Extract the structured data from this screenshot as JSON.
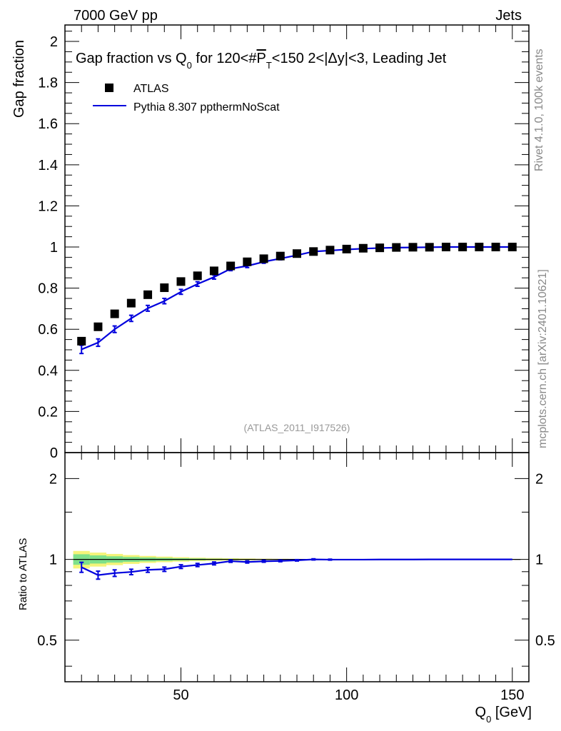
{
  "header": {
    "left": "7000 GeV pp",
    "right": "Jets"
  },
  "side_labels": {
    "rivet": "Rivet 4.1.0,  100k events",
    "mcplots": "mcplots.cern.ch [arXiv:2401.10621]"
  },
  "reference": "(ATLAS_2011_I917526)",
  "colors": {
    "data": "#000000",
    "mc": "#0000dd",
    "band_inner": "#7ee08a",
    "band_outer": "#f4f47a"
  },
  "chart_data": [
    {
      "type": "scatter",
      "title": "Gap fraction vs Q0 for 120<#P̅T<150  2<|Δy|<3, Leading Jet",
      "title_parts": {
        "a": "Gap fraction vs Q",
        "a_sub": "0",
        "b": " for 120<#",
        "c": "P",
        "c_sub": "T",
        "d": "<150  2<|Δy|<3, Leading Jet"
      },
      "ylabel": "Gap fraction",
      "xlim": [
        15,
        155
      ],
      "ylim": [
        0,
        2.08
      ],
      "yticks": [
        0,
        0.2,
        0.4,
        0.6,
        0.8,
        1,
        1.2,
        1.4,
        1.6,
        1.8,
        2
      ],
      "ytick_labels": [
        "0",
        "0.2",
        "0.4",
        "0.6",
        "0.8",
        "1",
        "1.2",
        "1.4",
        "1.6",
        "1.8",
        "2"
      ],
      "x": [
        20,
        25,
        30,
        35,
        40,
        45,
        50,
        55,
        60,
        65,
        70,
        75,
        80,
        85,
        90,
        95,
        100,
        105,
        110,
        115,
        120,
        125,
        130,
        135,
        140,
        145,
        150
      ],
      "series": [
        {
          "name": "ATLAS",
          "style": "marker",
          "values": [
            0.542,
            0.612,
            0.675,
            0.727,
            0.768,
            0.802,
            0.832,
            0.86,
            0.884,
            0.908,
            0.928,
            0.943,
            0.956,
            0.968,
            0.978,
            0.985,
            0.99,
            0.994,
            0.996,
            0.998,
            0.999,
            0.999,
            1.0,
            1.0,
            1.0,
            1.0,
            1.0
          ]
        },
        {
          "name": "Pythia 8.307 ppthermNoScat",
          "style": "line",
          "values": [
            0.502,
            0.535,
            0.6,
            0.653,
            0.702,
            0.737,
            0.782,
            0.82,
            0.854,
            0.894,
            0.908,
            0.928,
            0.944,
            0.96,
            0.978,
            0.983,
            0.988,
            0.992,
            0.995,
            0.997,
            0.998,
            0.999,
            1.0,
            1.0,
            1.0,
            1.0,
            1.0
          ],
          "errors": [
            0.02,
            0.018,
            0.016,
            0.015,
            0.014,
            0.013,
            0.012,
            0.011,
            0.01,
            0.009,
            0.008,
            0.007,
            0.006,
            0.005,
            0.004,
            0.003,
            0.003,
            0.002,
            0.002,
            0.002,
            0.001,
            0.001,
            0.001,
            0.001,
            0.001,
            0.001,
            0.001
          ]
        }
      ]
    },
    {
      "type": "line",
      "ylabel": "Ratio to ATLAS",
      "xlabel": "Q",
      "xlabel_sub": "0",
      "xlabel_unit": " [GeV]",
      "scale": "log",
      "xlim": [
        15,
        155
      ],
      "ylim": [
        0.35,
        2.5
      ],
      "xticks": [
        50,
        100,
        150
      ],
      "xtick_labels": [
        "50",
        "100",
        "150"
      ],
      "yticks": [
        0.5,
        1,
        2
      ],
      "ytick_labels": [
        "0.5",
        "1",
        "2"
      ],
      "x": [
        20,
        25,
        30,
        35,
        40,
        45,
        50,
        55,
        60,
        65,
        70,
        75,
        80,
        85,
        90,
        95,
        100,
        105,
        110,
        115,
        120,
        125,
        130,
        135,
        140,
        145,
        150
      ],
      "ratio": [
        0.935,
        0.874,
        0.889,
        0.898,
        0.914,
        0.919,
        0.94,
        0.953,
        0.966,
        0.985,
        0.978,
        0.984,
        0.987,
        0.992,
        1.0,
        0.998,
        0.998,
        0.998,
        0.999,
        0.999,
        0.999,
        1.0,
        1.0,
        1.0,
        1.0,
        1.0,
        1.0
      ],
      "ratio_err": [
        0.04,
        0.03,
        0.025,
        0.021,
        0.019,
        0.017,
        0.015,
        0.013,
        0.012,
        0.01,
        0.009,
        0.008,
        0.007,
        0.006,
        0.005,
        0.004,
        0.003,
        0.003,
        0.002,
        0.002,
        0.002,
        0.001,
        0.001,
        0.001,
        0.001,
        0.001,
        0.001
      ],
      "band_inner": [
        0.045,
        0.035,
        0.027,
        0.021,
        0.017,
        0.013,
        0.01,
        0.008,
        0.006,
        0.005,
        0.004,
        0.003,
        0.003,
        0.002,
        0.002,
        0.002,
        0.001,
        0.001,
        0.001,
        0.001,
        0.001,
        0.001,
        0.001,
        0.001,
        0.001,
        0.001,
        0.001
      ],
      "band_outer": [
        0.075,
        0.06,
        0.048,
        0.038,
        0.03,
        0.024,
        0.019,
        0.015,
        0.012,
        0.01,
        0.008,
        0.006,
        0.005,
        0.004,
        0.003,
        0.003,
        0.002,
        0.002,
        0.002,
        0.001,
        0.001,
        0.001,
        0.001,
        0.001,
        0.001,
        0.001,
        0.001
      ]
    }
  ]
}
